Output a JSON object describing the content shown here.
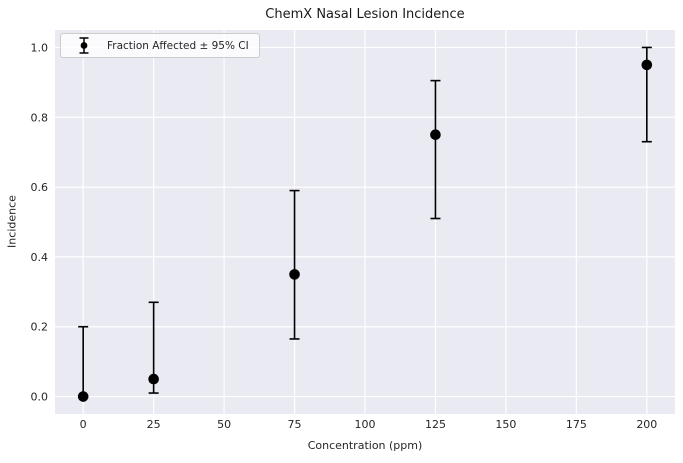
{
  "figure": {
    "title": "ChemX Nasal Lesion Incidence",
    "legend_label": "Fraction Affected ± 95% CI",
    "xlabel": "Concentration (ppm)",
    "ylabel": "Incidence"
  },
  "chart_data": {
    "type": "scatter",
    "title": "ChemX Nasal Lesion Incidence",
    "xlabel": "Concentration (ppm)",
    "ylabel": "Incidence",
    "legend": {
      "label": "Fraction Affected ± 95% CI",
      "position": "upper left"
    },
    "x": [
      0,
      25,
      75,
      125,
      200
    ],
    "y": [
      0.0,
      0.05,
      0.35,
      0.75,
      0.95
    ],
    "ci_lower": [
      0.0,
      0.01,
      0.165,
      0.51,
      0.73
    ],
    "ci_upper": [
      0.2,
      0.27,
      0.59,
      0.905,
      1.0
    ],
    "x_ticks": [
      "0",
      "25",
      "50",
      "75",
      "100",
      "125",
      "150",
      "175",
      "200"
    ],
    "x_tick_values": [
      0,
      25,
      50,
      75,
      100,
      125,
      150,
      175,
      200
    ],
    "y_ticks": [
      "0.0",
      "0.2",
      "0.4",
      "0.6",
      "0.8",
      "1.0"
    ],
    "y_tick_values": [
      0.0,
      0.2,
      0.4,
      0.6,
      0.8,
      1.0
    ],
    "xlim": [
      -10,
      210
    ],
    "ylim": [
      -0.05,
      1.05
    ],
    "grid": true,
    "legend_position": "upper left",
    "colors": {
      "figure_bg": "#ffffff",
      "plot_bg": "#eaeaf2",
      "grid": "#ffffff",
      "marker": "#000000",
      "errorbar": "#000000",
      "text": "#262626",
      "legend_border": "#cccccc"
    }
  }
}
